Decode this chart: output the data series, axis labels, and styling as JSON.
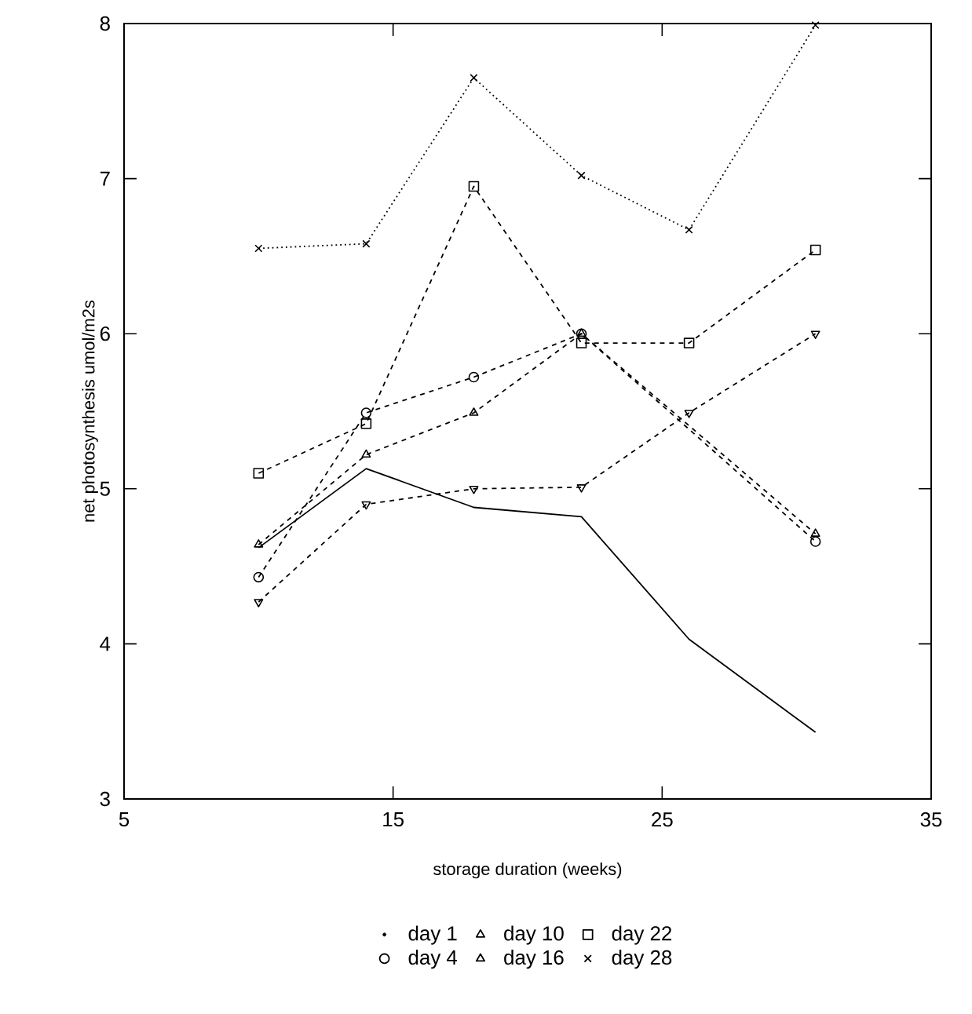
{
  "chart_data": {
    "type": "line",
    "xlabel": "storage duration (weeks)",
    "ylabel": "net photosynthesis umol/m2s",
    "x": [
      10,
      14,
      18,
      22,
      26,
      30.7
    ],
    "xlim": [
      5,
      35
    ],
    "xticks": [
      5,
      15,
      25,
      35
    ],
    "ylim": [
      3,
      8
    ],
    "yticks": [
      3,
      4,
      5,
      6,
      7,
      8
    ],
    "grid": false,
    "legend": "bottom",
    "series": [
      {
        "name": "day 1",
        "color": "#000000",
        "marker": "none",
        "line_style": "solid",
        "values": [
          4.62,
          5.13,
          4.88,
          4.82,
          4.03,
          3.43
        ]
      },
      {
        "name": "day 4",
        "color": "#000000",
        "marker": "circle",
        "line_style": "dashed",
        "x": [
          10,
          14,
          18,
          22,
          30.7
        ],
        "values": [
          4.43,
          5.49,
          5.72,
          6.0,
          4.66
        ]
      },
      {
        "name": "day 10",
        "color": "#000000",
        "marker": "triangle",
        "line_style": "dashed",
        "x": [
          10,
          14,
          18,
          22,
          30.7
        ],
        "values": [
          4.64,
          5.22,
          5.49,
          6.0,
          4.71
        ]
      },
      {
        "name": "day 16",
        "color": "#000000",
        "marker": "triangle-down",
        "line_style": "dashed",
        "values": [
          4.27,
          4.9,
          5.0,
          5.01,
          5.49,
          6.0
        ]
      },
      {
        "name": "day 22",
        "color": "#000000",
        "marker": "square",
        "line_style": "dashed",
        "values": [
          5.1,
          5.42,
          6.95,
          5.94,
          5.94,
          6.54
        ]
      },
      {
        "name": "day 28",
        "color": "#000000",
        "marker": "cross",
        "line_style": "dotted",
        "values": [
          6.55,
          6.58,
          7.65,
          7.02,
          6.67,
          7.99
        ]
      }
    ]
  }
}
